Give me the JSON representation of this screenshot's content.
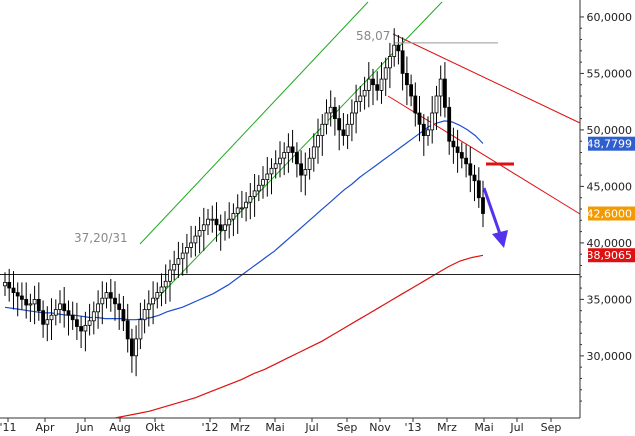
{
  "chart_data": {
    "type": "candlestick",
    "x_ticks": [
      "'11",
      "Apr",
      "Jun",
      "Aug",
      "Okt",
      "'12",
      "Mrz",
      "Mai",
      "Jul",
      "Sep",
      "Nov",
      "'13",
      "Mrz",
      "Mai",
      "Jul",
      "Sep"
    ],
    "y_ticks": [
      "60,0000",
      "55,0000",
      "50,0000",
      "45,0000",
      "40,0000",
      "35,0000",
      "30,0000"
    ],
    "y_tick_values": [
      60,
      55,
      50,
      45,
      40,
      35,
      30
    ],
    "ylim": [
      24.5,
      61.5
    ],
    "price_close": [
      36.5,
      36.0,
      35.6,
      35.3,
      35.0,
      34.5,
      34.6,
      35.0,
      34.0,
      32.8,
      33.2,
      33.6,
      34.1,
      34.6,
      34.0,
      33.6,
      33.2,
      32.6,
      32.2,
      32.7,
      33.1,
      33.9,
      34.6,
      35.1,
      35.6,
      35.1,
      34.6,
      34.1,
      33.1,
      31.5,
      30.0,
      31.5,
      33.2,
      34.1,
      34.6,
      35.1,
      35.6,
      36.1,
      36.6,
      37.6,
      38.1,
      38.6,
      39.1,
      39.6,
      40.0,
      40.6,
      41.1,
      41.6,
      42.1,
      42.1,
      41.6,
      41.1,
      41.6,
      42.1,
      42.6,
      43.1,
      43.1,
      43.6,
      44.1,
      44.6,
      45.1,
      45.6,
      46.1,
      46.6,
      47.0,
      47.5,
      48.0,
      48.5,
      48.0,
      47.0,
      46.0,
      46.5,
      47.5,
      48.5,
      49.5,
      50.5,
      51.5,
      52.0,
      51.0,
      50.0,
      49.5,
      50.5,
      51.5,
      52.5,
      53.0,
      53.5,
      54.5,
      54.0,
      53.5,
      54.5,
      55.5,
      56.5,
      57.5,
      57.0,
      55.0,
      54.0,
      53.0,
      51.5,
      50.5,
      49.5,
      50.0,
      51.5,
      53.0,
      54.5,
      52.0,
      49.0,
      48.5,
      48.0,
      47.5,
      47.0,
      46.0,
      45.5,
      44.0,
      42.6
    ],
    "ma_short": [
      34.3,
      34.2,
      34.1,
      34.0,
      33.9,
      33.8,
      33.8,
      33.7,
      33.6,
      33.6,
      33.5,
      33.4,
      33.4,
      33.3,
      33.3,
      33.3,
      33.2,
      33.2,
      33.3,
      33.4,
      33.6,
      33.9,
      34.1,
      34.3,
      34.6,
      34.9,
      35.2,
      35.5,
      35.9,
      36.3,
      36.8,
      37.3,
      37.8,
      38.3,
      38.8,
      39.3,
      39.9,
      40.5,
      41.1,
      41.7,
      42.3,
      42.9,
      43.5,
      44.1,
      44.7,
      45.2,
      45.8,
      46.3,
      46.8,
      47.3,
      47.8,
      48.3,
      48.8,
      49.3,
      49.8,
      50.3,
      50.6,
      50.8,
      50.7,
      50.4,
      50.0,
      49.5,
      48.8
    ],
    "ma_long": [
      24.5,
      24.7,
      24.9,
      25.1,
      25.4,
      25.7,
      26.0,
      26.3,
      26.7,
      27.1,
      27.5,
      27.9,
      28.4,
      28.8,
      29.3,
      29.8,
      30.3,
      30.8,
      31.3,
      31.9,
      32.5,
      33.1,
      33.7,
      34.3,
      34.9,
      35.5,
      36.1,
      36.7,
      37.3,
      37.9,
      38.4,
      38.7,
      38.9
    ],
    "horizontal_level": 37.2,
    "annotations": [
      "37,20/31",
      "58,07"
    ],
    "value_tags": [
      {
        "text": "48,7799",
        "value": 48.7799,
        "color": "#2f5fcf"
      },
      {
        "text": "42,6000",
        "value": 42.6,
        "color": "#f29a00"
      },
      {
        "text": "38,9065",
        "value": 38.9065,
        "color": "#dd1111"
      }
    ],
    "colors": {
      "price": "#000000",
      "ma_short": "#1f4fd0",
      "ma_long": "#dd1111",
      "uptrend_channel": "#22aa22",
      "downtrend_channel": "#dd1111",
      "arrow": "#5533ee",
      "level_line": "#222222"
    }
  }
}
